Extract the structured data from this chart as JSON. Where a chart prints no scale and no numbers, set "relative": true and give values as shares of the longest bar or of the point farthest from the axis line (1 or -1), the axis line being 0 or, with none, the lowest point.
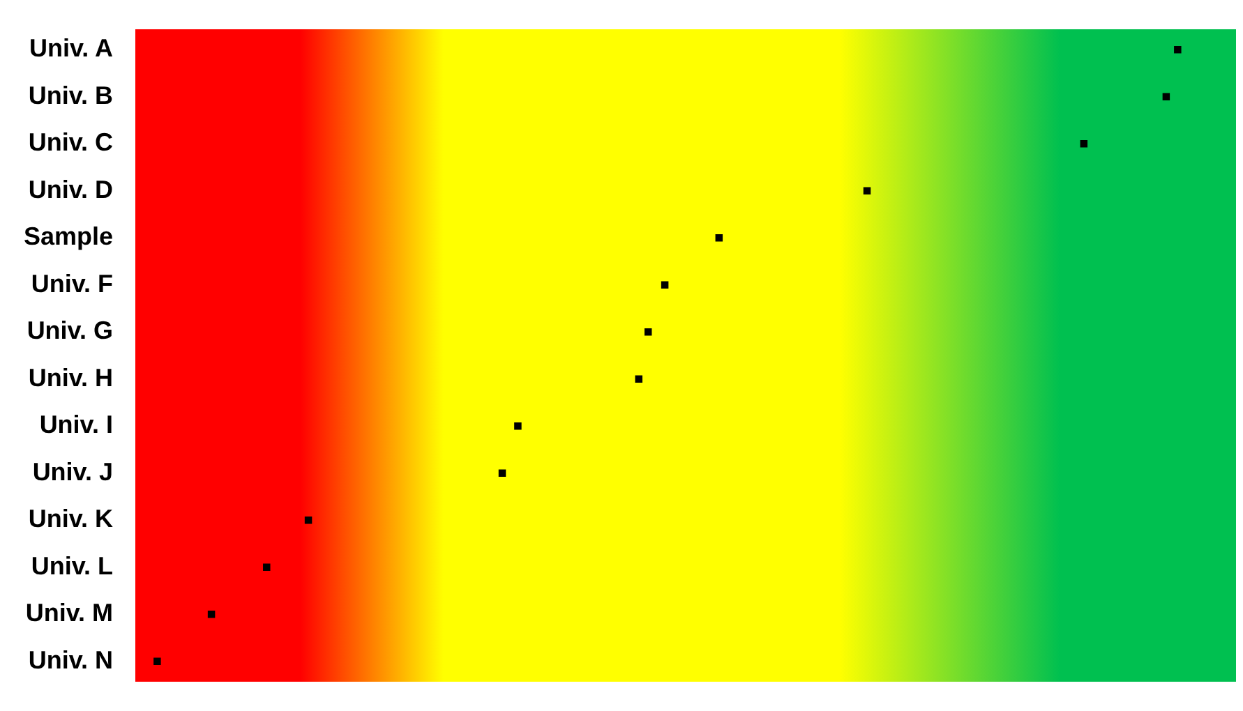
{
  "chart_data": {
    "type": "scatter",
    "relative": true,
    "categories": [
      "Univ. A",
      "Univ. B",
      "Univ. C",
      "Univ. D",
      "Sample",
      "Univ. F",
      "Univ. G",
      "Univ. H",
      "Univ. I",
      "Univ. J",
      "Univ. K",
      "Univ. L",
      "Univ. M",
      "Univ. N"
    ],
    "series": [
      {
        "color": "#000000",
        "values": [
          1,
          0.989,
          0.91,
          0.702,
          0.56,
          0.508,
          0.492,
          0.483,
          0.367,
          0.352,
          0.166,
          0.126,
          0.073,
          0.021
        ]
      }
    ],
    "orientation": "horizontal",
    "grid": false,
    "legend": false
  }
}
